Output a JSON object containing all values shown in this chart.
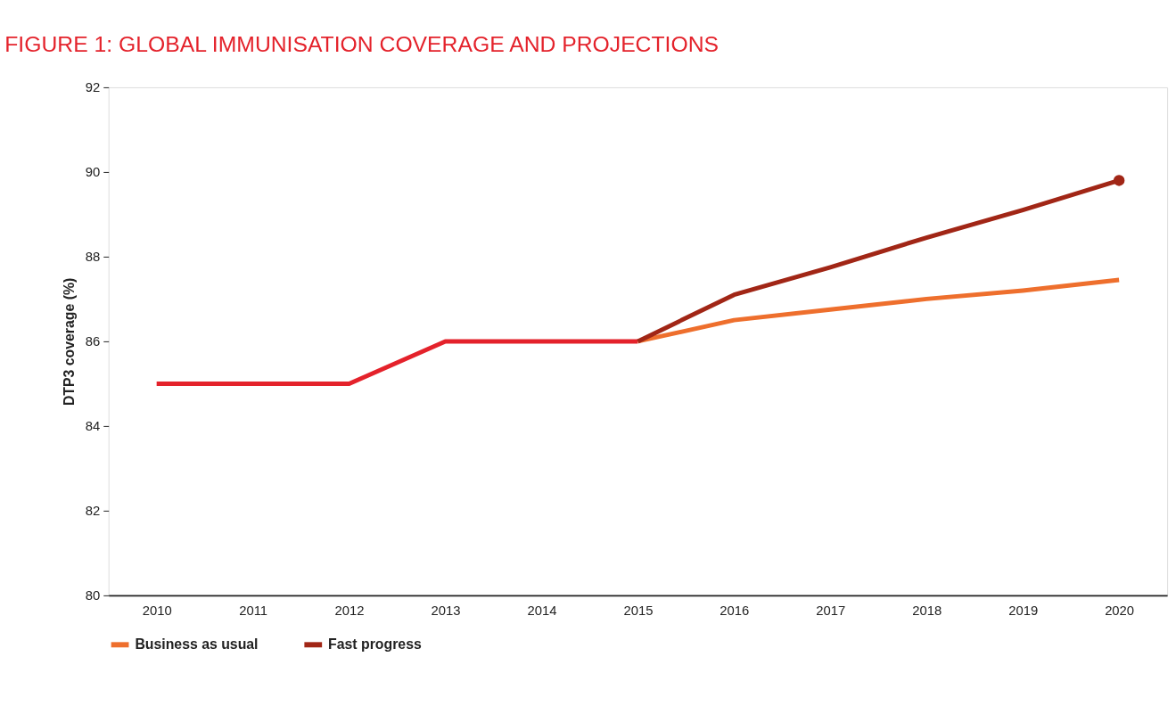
{
  "chart_data": {
    "type": "line",
    "title": "FIGURE 1: GLOBAL IMMUNISATION COVERAGE AND PROJECTIONS",
    "ylabel": "DTP3 coverage (%)",
    "categories": [
      "2010",
      "2011",
      "2012",
      "2013",
      "2014",
      "2015",
      "2016",
      "2017",
      "2018",
      "2019",
      "2020"
    ],
    "series": [
      {
        "color": "#e4222b",
        "values": [
          85,
          85,
          85,
          86,
          86,
          86,
          null,
          null,
          null,
          null,
          null
        ]
      },
      {
        "name": "Business as usual",
        "color": "#ee6f2d",
        "values": [
          null,
          null,
          null,
          null,
          null,
          86,
          86.5,
          86.75,
          87.0,
          87.2,
          87.45
        ]
      },
      {
        "name": "Fast progress",
        "color": "#a12616",
        "values": [
          null,
          null,
          null,
          null,
          null,
          86,
          87.1,
          87.75,
          88.45,
          89.1,
          89.8
        ]
      },
      {
        "type": "scatter",
        "color": "#a12616",
        "marker": "circle",
        "values": [
          null,
          null,
          null,
          null,
          null,
          null,
          null,
          null,
          null,
          null,
          89.8
        ]
      }
    ],
    "ylim": [
      80,
      92
    ],
    "yticks": [
      80,
      82,
      84,
      86,
      88,
      90,
      92
    ],
    "grid": false,
    "legend": "bottom left",
    "line_style": "solid"
  }
}
